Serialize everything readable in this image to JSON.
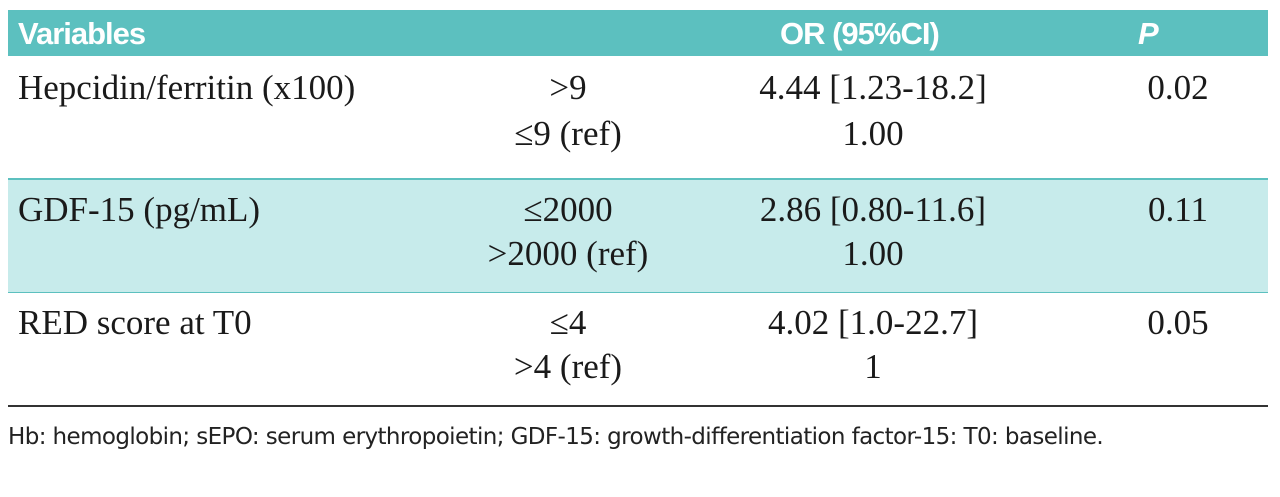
{
  "header": {
    "variables": "Variables",
    "or": "OR (95%CI)",
    "p": "P"
  },
  "rows": [
    {
      "variable": "Hepcidin/ferritin (x100)",
      "levels": [
        {
          "label": ">9",
          "or": "4.44 [1.23-18.2]",
          "p": "0.02"
        },
        {
          "label": "≤9 (ref)",
          "or": "1.00",
          "p": ""
        }
      ]
    },
    {
      "variable": "GDF-15 (pg/mL)",
      "levels": [
        {
          "label": "≤2000",
          "or": "2.86 [0.80-11.6]",
          "p": "0.11"
        },
        {
          "label": ">2000 (ref)",
          "or": "1.00",
          "p": ""
        }
      ]
    },
    {
      "variable": "RED score at T0",
      "levels": [
        {
          "label": "≤4",
          "or": "4.02 [1.0-22.7]",
          "p": "0.05"
        },
        {
          "label": ">4 (ref)",
          "or": "1",
          "p": ""
        }
      ]
    }
  ],
  "footnote": "Hb: hemoglobin; sEPO: serum erythropoietin; GDF-15: growth-differentiation factor-15: T0: baseline.",
  "colors": {
    "header_bg": "#5cc0bf",
    "shaded_row": "#c7ebeb"
  }
}
